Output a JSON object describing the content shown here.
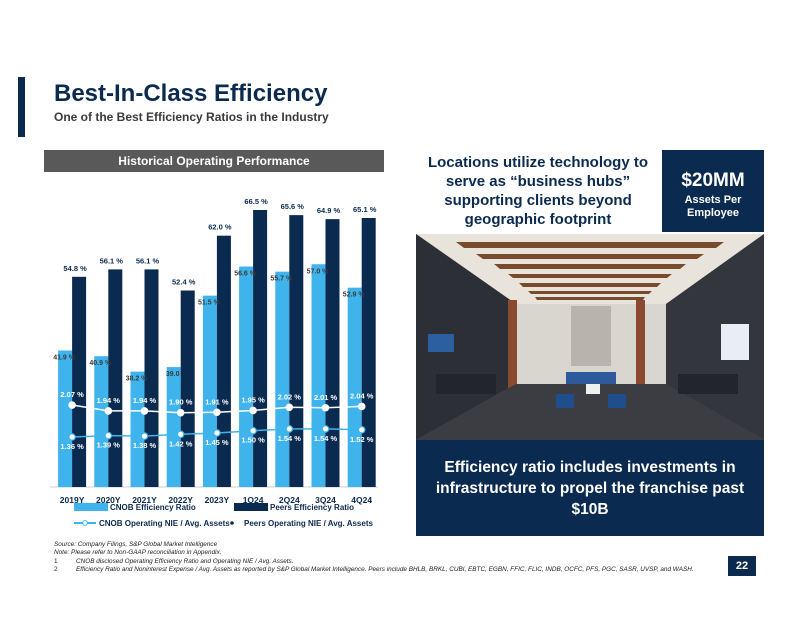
{
  "page": {
    "title": "Best-In-Class Efficiency",
    "subtitle": "One of the Best Efficiency Ratios in the Industry",
    "page_number": "22"
  },
  "chart_header": "Historical Operating Performance",
  "right_panel": {
    "headline": "Locations utilize technology to serve as “business hubs” supporting clients beyond geographic footprint",
    "stat_value": "$20MM",
    "stat_label": "Assets Per Employee",
    "bottom_text": "Efficiency ratio includes investments in infrastructure to propel the franchise past $10B"
  },
  "footnotes": {
    "source": "Source: Company Filings, S&P Global Market Intelligence",
    "note": "Note: Please refer to Non-GAAP reconciliation in Appendix.",
    "fn1_num": "1",
    "fn1_text": "CNOB disclosed Operating Efficiency Ratio and Operating NIE / Avg. Assets.",
    "fn2_num": "2",
    "fn2_text": "Efficiency Ratio and Noninterest Expense / Avg. Assets as reported by S&P Global Market Intelligence. Peers include BHLB, BRKL, CUBI, EBTC, EGBN, FFIC, FLIC, INDB, OCFC, PFS, PGC, SASR, UVSP, and WASH."
  },
  "chart_data": {
    "type": "bar",
    "categories": [
      "2019Y",
      "2020Y",
      "2021Y",
      "2022Y",
      "2023Y",
      "1Q24",
      "2Q24",
      "3Q24",
      "4Q24"
    ],
    "series": [
      {
        "name": "CNOB Efficiency Ratio",
        "type": "bar",
        "color": "#3fb4ec",
        "values": [
          41.9,
          40.9,
          38.2,
          39.0,
          51.5,
          56.6,
          55.7,
          57.0,
          52.9
        ],
        "labels": [
          "41.9 %",
          "40.9 %",
          "38.2 %",
          "39.0",
          "51.5 %",
          "56.6 %",
          "55.7 %",
          "57.0 %",
          "52.9 %"
        ]
      },
      {
        "name": "Peers Efficiency Ratio",
        "type": "bar",
        "color": "#0b2a4f",
        "values": [
          54.8,
          56.1,
          56.1,
          52.4,
          62.0,
          66.5,
          65.6,
          64.9,
          65.1
        ],
        "labels": [
          "54.8 %",
          "56.1 %",
          "56.1 %",
          "52.4 %",
          "62.0 %",
          "66.5 %",
          "65.6 %",
          "64.9 %",
          "65.1 %"
        ]
      },
      {
        "name": "CNOB Operating NIE / Avg. Assets",
        "type": "line",
        "color": "#3fb4ec",
        "values": [
          1.36,
          1.39,
          1.38,
          1.42,
          1.45,
          1.5,
          1.54,
          1.54,
          1.52
        ],
        "labels": [
          "1.36 %",
          "1.39 %",
          "1.38 %",
          "1.42 %",
          "1.45 %",
          "1.50 %",
          "1.54 %",
          "1.54 %",
          "1.52 %"
        ]
      },
      {
        "name": "Peers Operating NIE / Avg. Assets",
        "type": "line",
        "color": "#ffffff",
        "values": [
          2.07,
          1.94,
          1.94,
          1.9,
          1.91,
          1.95,
          2.02,
          2.01,
          2.04
        ],
        "labels": [
          "2.07 %",
          "1.94 %",
          "1.94 %",
          "1.90 %",
          "1.91 %",
          "1.95 %",
          "2.02 %",
          "2.01 %",
          "2.04 %"
        ]
      }
    ],
    "legend": [
      "CNOB Efficiency Ratio",
      "Peers Efficiency Ratio",
      "CNOB Operating NIE / Avg. Assets",
      "Peers Operating NIE / Avg. Assets"
    ],
    "legend_position": "bottom",
    "ylim": [
      0,
      70
    ],
    "grid": false
  }
}
